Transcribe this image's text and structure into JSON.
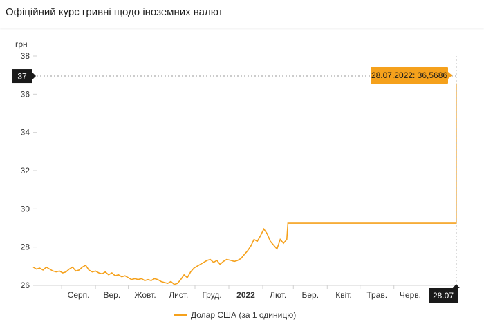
{
  "header": {
    "title": "Офіційний курс гривні щодо іноземних валют"
  },
  "colors": {
    "line": "#f5a11c",
    "callout_bg": "#f5a11c",
    "marker_bg": "#1a1a1a",
    "axis": "#d0d0d0",
    "text": "#333333"
  },
  "chart_data": {
    "type": "line",
    "title": "",
    "ylabel": "грн",
    "ylim": [
      26,
      38
    ],
    "yticks": [
      26,
      28,
      30,
      32,
      34,
      36,
      38
    ],
    "xlim": [
      "2021-07-06",
      "2022-07-30"
    ],
    "xticks": [
      {
        "date": "2021-08-01",
        "label": "Серп."
      },
      {
        "date": "2021-09-01",
        "label": "Вер."
      },
      {
        "date": "2021-10-01",
        "label": "Жовт."
      },
      {
        "date": "2021-11-01",
        "label": "Лист."
      },
      {
        "date": "2021-12-01",
        "label": "Груд."
      },
      {
        "date": "2022-01-01",
        "label": "2022",
        "bold": true
      },
      {
        "date": "2022-02-01",
        "label": "Лют."
      },
      {
        "date": "2022-03-01",
        "label": "Бер."
      },
      {
        "date": "2022-04-01",
        "label": "Квіт."
      },
      {
        "date": "2022-05-01",
        "label": "Трав."
      },
      {
        "date": "2022-06-01",
        "label": "Черв."
      }
    ],
    "crosshair": {
      "y_label": "37",
      "x_label": "28.07",
      "callout": "28.07.2022: 36,5686"
    },
    "series": [
      {
        "name": "Долар США (за 1 одиницю)",
        "x": [
          "2021-07-06",
          "2021-07-09",
          "2021-07-12",
          "2021-07-15",
          "2021-07-18",
          "2021-07-21",
          "2021-07-24",
          "2021-07-27",
          "2021-07-30",
          "2021-08-02",
          "2021-08-05",
          "2021-08-08",
          "2021-08-11",
          "2021-08-14",
          "2021-08-17",
          "2021-08-20",
          "2021-08-23",
          "2021-08-26",
          "2021-08-29",
          "2021-09-01",
          "2021-09-04",
          "2021-09-07",
          "2021-09-10",
          "2021-09-13",
          "2021-09-16",
          "2021-09-19",
          "2021-09-22",
          "2021-09-25",
          "2021-09-28",
          "2021-10-01",
          "2021-10-04",
          "2021-10-07",
          "2021-10-10",
          "2021-10-13",
          "2021-10-16",
          "2021-10-19",
          "2021-10-22",
          "2021-10-25",
          "2021-10-28",
          "2021-10-31",
          "2021-11-03",
          "2021-11-06",
          "2021-11-09",
          "2021-11-12",
          "2021-11-15",
          "2021-11-18",
          "2021-11-21",
          "2021-11-24",
          "2021-11-27",
          "2021-11-30",
          "2021-12-03",
          "2021-12-06",
          "2021-12-09",
          "2021-12-12",
          "2021-12-15",
          "2021-12-18",
          "2021-12-21",
          "2021-12-24",
          "2021-12-27",
          "2021-12-30",
          "2022-01-03",
          "2022-01-06",
          "2022-01-09",
          "2022-01-12",
          "2022-01-15",
          "2022-01-18",
          "2022-01-21",
          "2022-01-24",
          "2022-01-27",
          "2022-01-30",
          "2022-02-02",
          "2022-02-05",
          "2022-02-08",
          "2022-02-11",
          "2022-02-14",
          "2022-02-17",
          "2022-02-20",
          "2022-02-23",
          "2022-02-24",
          "2022-07-20",
          "2022-07-21",
          "2022-07-28"
        ],
        "values": [
          26.95,
          26.85,
          26.9,
          26.8,
          26.95,
          26.85,
          26.75,
          26.7,
          26.75,
          26.65,
          26.7,
          26.85,
          26.95,
          26.75,
          26.8,
          26.95,
          27.05,
          26.8,
          26.7,
          26.75,
          26.65,
          26.6,
          26.7,
          26.55,
          26.65,
          26.5,
          26.55,
          26.45,
          26.5,
          26.4,
          26.3,
          26.35,
          26.3,
          26.35,
          26.25,
          26.3,
          26.25,
          26.35,
          26.3,
          26.2,
          26.15,
          26.1,
          26.2,
          26.05,
          26.1,
          26.3,
          26.55,
          26.4,
          26.7,
          26.9,
          27.0,
          27.1,
          27.2,
          27.3,
          27.35,
          27.2,
          27.3,
          27.1,
          27.25,
          27.35,
          27.3,
          27.25,
          27.3,
          27.4,
          27.6,
          27.8,
          28.05,
          28.4,
          28.3,
          28.6,
          28.95,
          28.7,
          28.3,
          28.1,
          27.9,
          28.4,
          28.2,
          28.4,
          29.25,
          29.25,
          29.25,
          36.5686
        ]
      }
    ],
    "legend_position": "bottom-center"
  }
}
